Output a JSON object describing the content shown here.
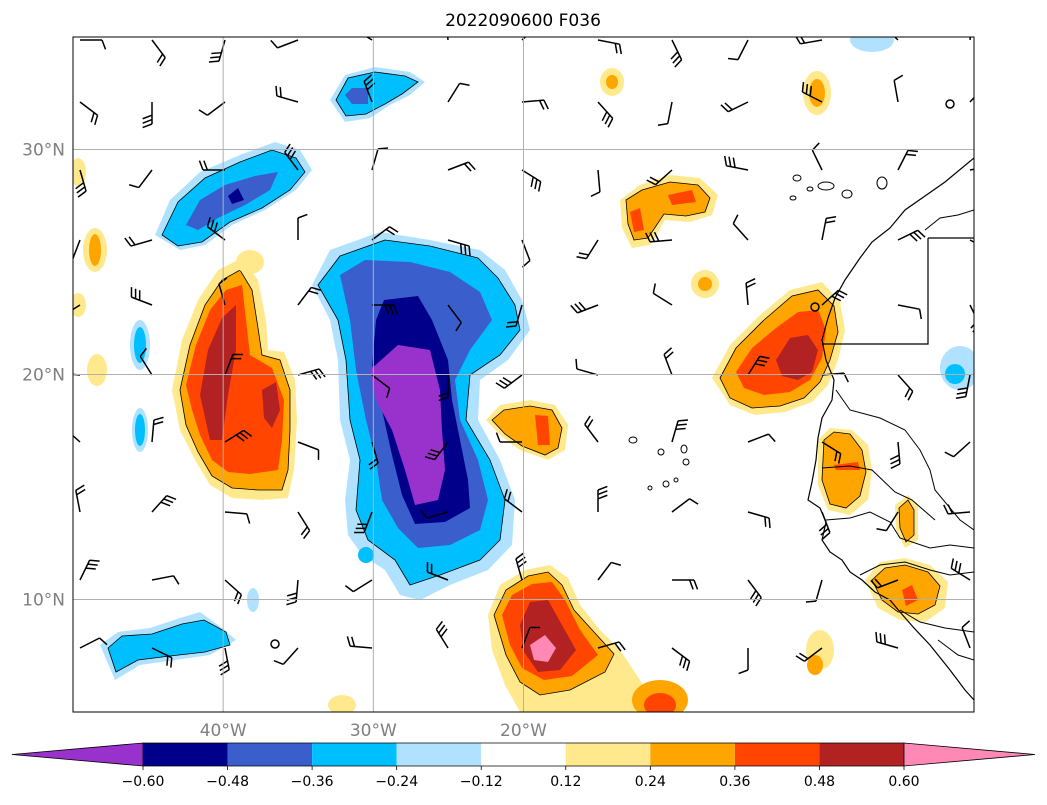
{
  "title": "2022090600 F036",
  "map": {
    "lon_range": [
      -50,
      10
    ],
    "lat_range": [
      5,
      35
    ],
    "lon_ticks": [
      {
        "lon": -40,
        "label": "40°W"
      },
      {
        "lon": -30,
        "label": "30°W"
      },
      {
        "lon": -20,
        "label": "20°W"
      }
    ],
    "lat_ticks": [
      {
        "lat": 30,
        "label": "30°N"
      },
      {
        "lat": 20,
        "label": "20°N"
      },
      {
        "lat": 10,
        "label": "10°N"
      }
    ],
    "grid": true,
    "wind_barbs": true,
    "coastlines": true
  },
  "colorbar": {
    "levels": [
      -0.6,
      -0.48,
      -0.36,
      -0.24,
      -0.12,
      0.12,
      0.24,
      0.36,
      0.48,
      0.6
    ],
    "tick_labels": [
      "−0.60",
      "−0.48",
      "−0.36",
      "−0.24",
      "−0.12",
      "0.12",
      "0.24",
      "0.36",
      "0.48",
      "0.60"
    ],
    "colors": [
      "#9932cc",
      "#00008b",
      "#3a5fcd",
      "#00bfff",
      "#b0e2ff",
      "#ffffff",
      "#ffe98c",
      "#ffa500",
      "#ff4500",
      "#b22222",
      "#ff88b4"
    ],
    "extend": "both"
  }
}
